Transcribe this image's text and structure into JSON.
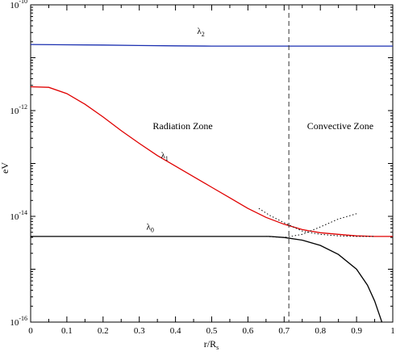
{
  "chart_data": {
    "type": "line",
    "title": "",
    "xlabel_main": "r/R",
    "xlabel_sub": "s",
    "ylabel": "eV",
    "xlim": [
      0,
      1
    ],
    "ylog": true,
    "ylim_exp": [
      -16,
      -10
    ],
    "x_ticks": [
      "0",
      "0.1",
      "0.2",
      "0.3",
      "0.4",
      "0.5",
      "0.6",
      "0.7",
      "0.8",
      "0.9",
      "1"
    ],
    "y_ticks": [
      {
        "base": "10",
        "exp": "-16",
        "value_exp": -16
      },
      {
        "base": "10",
        "exp": "-14",
        "value_exp": -14
      },
      {
        "base": "10",
        "exp": "-12",
        "value_exp": -12
      },
      {
        "base": "10",
        "exp": "-10",
        "value_exp": -10
      }
    ],
    "boundary_x": 0.713,
    "annotations": [
      {
        "id": "radiation",
        "text": "Radiation Zone",
        "x": 0.42,
        "y_exp": -12.35
      },
      {
        "id": "convective",
        "text": "Convective Zone",
        "x": 0.855,
        "y_exp": -12.35
      }
    ],
    "series": [
      {
        "id": "lambda2",
        "label_main": "λ",
        "label_sub": "2",
        "label_x": 0.47,
        "label_y_exp": -10.55,
        "color": "#1a2fb0",
        "dash": "",
        "x": [
          0,
          0.1,
          0.2,
          0.3,
          0.4,
          0.5,
          0.6,
          0.7,
          0.8,
          0.9,
          1.0
        ],
        "y_exp": [
          -10.75,
          -10.755,
          -10.76,
          -10.77,
          -10.775,
          -10.78,
          -10.78,
          -10.78,
          -10.78,
          -10.78,
          -10.78
        ]
      },
      {
        "id": "lambda1",
        "label_main": "λ",
        "label_sub": "1",
        "label_x": 0.37,
        "label_y_exp": -12.9,
        "color": "#e00000",
        "dash": "",
        "x": [
          0,
          0.05,
          0.1,
          0.15,
          0.2,
          0.25,
          0.3,
          0.35,
          0.4,
          0.45,
          0.5,
          0.55,
          0.6,
          0.65,
          0.7,
          0.75,
          0.8,
          0.85,
          0.9,
          0.95,
          1.0
        ],
        "y_exp": [
          -11.55,
          -11.56,
          -11.68,
          -11.88,
          -12.12,
          -12.38,
          -12.62,
          -12.85,
          -13.05,
          -13.25,
          -13.45,
          -13.65,
          -13.85,
          -14.02,
          -14.15,
          -14.25,
          -14.31,
          -14.34,
          -14.37,
          -14.38,
          -14.38
        ]
      },
      {
        "id": "lambda0",
        "label_main": "λ",
        "label_sub": "0",
        "label_x": 0.33,
        "label_y_exp": -14.25,
        "color": "#000000",
        "dash": "",
        "x": [
          0,
          0.1,
          0.2,
          0.3,
          0.4,
          0.5,
          0.6,
          0.66,
          0.7,
          0.75,
          0.8,
          0.85,
          0.9,
          0.93,
          0.95,
          0.97
        ],
        "y_exp": [
          -14.38,
          -14.38,
          -14.38,
          -14.38,
          -14.38,
          -14.38,
          -14.38,
          -14.38,
          -14.4,
          -14.45,
          -14.55,
          -14.72,
          -15.0,
          -15.3,
          -15.6,
          -16.0
        ]
      },
      {
        "id": "dotted_upper",
        "label_main": "",
        "label_sub": "",
        "color": "#000000",
        "dash": "1.5,2.5",
        "x": [
          0.63,
          0.66,
          0.7,
          0.75,
          0.8,
          0.85,
          0.9,
          0.95
        ],
        "y_exp": [
          -13.85,
          -13.98,
          -14.12,
          -14.28,
          -14.34,
          -14.37,
          -14.38,
          -14.38
        ]
      },
      {
        "id": "dotted_lower",
        "label_main": "",
        "label_sub": "",
        "color": "#000000",
        "dash": "1.5,2.5",
        "x": [
          0.65,
          0.7,
          0.75,
          0.8,
          0.85,
          0.9
        ],
        "y_exp": [
          -14.38,
          -14.4,
          -14.34,
          -14.2,
          -14.05,
          -13.95
        ]
      }
    ]
  }
}
